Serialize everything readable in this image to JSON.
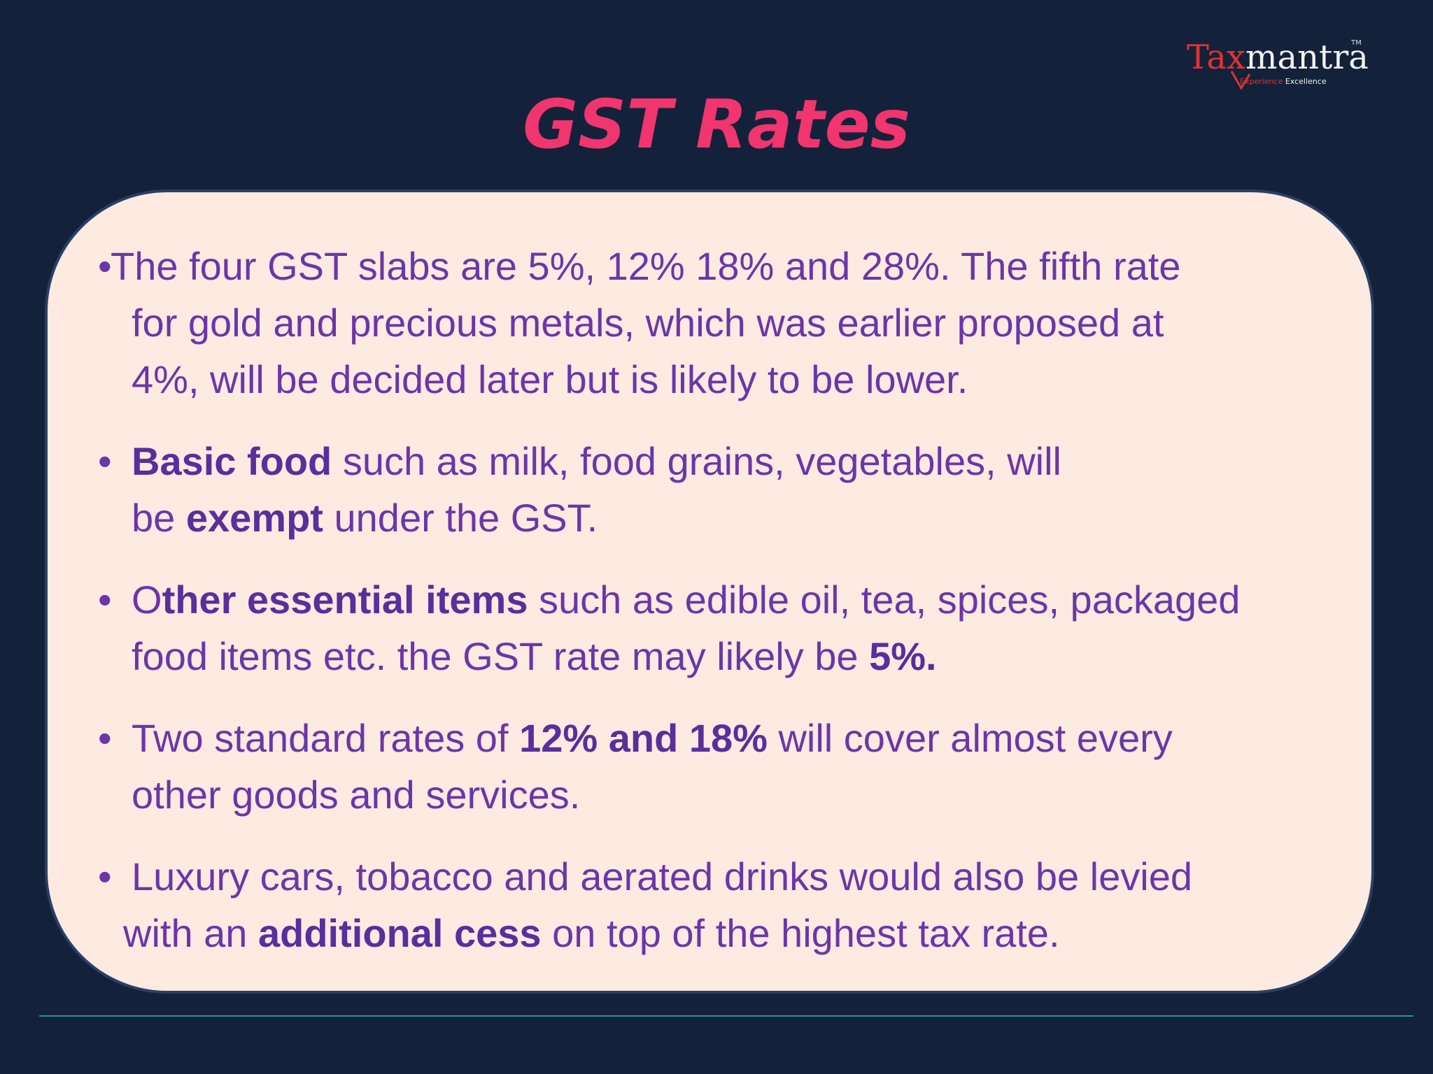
{
  "slide": {
    "title": "GST Rates",
    "colors": {
      "background": "#13223a",
      "title": "#f0356f",
      "panel": "#fdeae1",
      "text": "#6b36a8",
      "accent_line": "#2e8c99"
    }
  },
  "logo": {
    "part1": "Tax",
    "part2": "mantra",
    "tm": "TM",
    "tagline_1": "Experience",
    "tagline_2": "Excellence"
  },
  "bullets": [
    {
      "marker": "•",
      "line1": "The four GST slabs are 5%, 12% 18% and 28%. The fifth rate",
      "line2": "for gold and precious metals, which was earlier proposed at",
      "line3": "4%, will be decided later but is likely to be lower."
    },
    {
      "marker": "•",
      "l1_bold": "Basic food",
      "l1_rest": " such as milk, food grains, vegetables, will",
      "l2_pre": "be ",
      "l2_bold": "exempt",
      "l2_rest": " under the GST."
    },
    {
      "marker": "•",
      "l1_pre": "O",
      "l1_bold": "ther essential items",
      "l1_rest": " such as edible oil, tea, spices, packaged",
      "l2_pre": "food items etc. the GST rate may likely be ",
      "l2_bold": "5%."
    },
    {
      "marker": "•",
      "l1_pre": "Two standard rates of ",
      "l1_bold": "12% and 18%",
      "l1_rest": " will cover almost every",
      "l2": "other goods and services."
    },
    {
      "marker": "•",
      "l1": "Luxury cars, tobacco and aerated drinks would also be levied",
      "l2_pre": "with an ",
      "l2_bold": "additional cess",
      "l2_rest": " on top of the highest tax rate."
    }
  ]
}
